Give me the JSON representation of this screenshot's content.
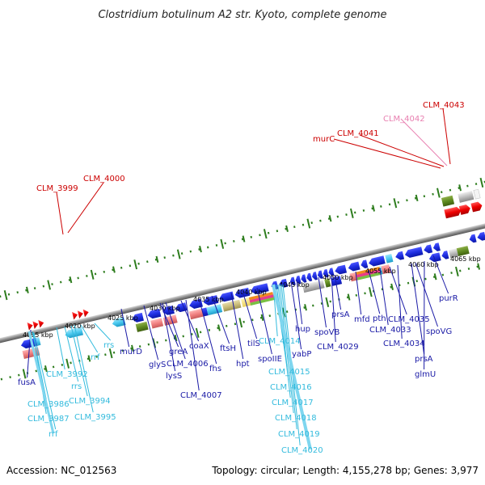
{
  "title": "Clostridium botulinum A2 str. Kyoto, complete genome",
  "footer": {
    "accession": "Accession: NC_012563",
    "summary": "Topology: circular; Length: 4,155,278 bp; Genes: 3,977"
  },
  "colors": {
    "red_label": "#cc0000",
    "pink_label": "#e87fb0",
    "blue_label": "#1a1aa6",
    "cyan_label": "#33bbdd",
    "backbone": "#8c8c8c",
    "tick": "#2e7d1e"
  },
  "kbp_ticks": [
    "4015 kbp",
    "4020 kbp",
    "4025 kbp",
    "4030 kbp",
    "4035 kbp",
    "4040 kbp",
    "4045 kbp",
    "4050 kbp",
    "4055 kbp",
    "4060 kbp",
    "4065 kbp"
  ],
  "top_labels": [
    "CLM_3999",
    "CLM_4000",
    "murC",
    "CLM_4041",
    "CLM_4042",
    "CLM_4043"
  ],
  "bottom_labels": [
    "fusA",
    "CLM_3986",
    "CLM_3987",
    "rrf",
    "CLM_3992",
    "rrs",
    "CLM_3994",
    "CLM_3995",
    "rrf",
    "rrs",
    "murD",
    "glyS",
    "greA",
    "lysS",
    "CLM_4006",
    "coaX",
    "CLM_4007",
    "fhs",
    "ftsH",
    "hpt",
    "tilS",
    "spoIIE",
    "CLM_4014",
    "CLM_4015",
    "CLM_4016",
    "CLM_4017",
    "CLM_4018",
    "CLM_4019",
    "CLM_4020",
    "hup",
    "yabP",
    "spoVB",
    "CLM_4029",
    "prsA",
    "mfd",
    "pth",
    "CLM_4033",
    "CLM_4035",
    "CLM_4034",
    "prsA",
    "spoVG",
    "glmU",
    "purR"
  ]
}
